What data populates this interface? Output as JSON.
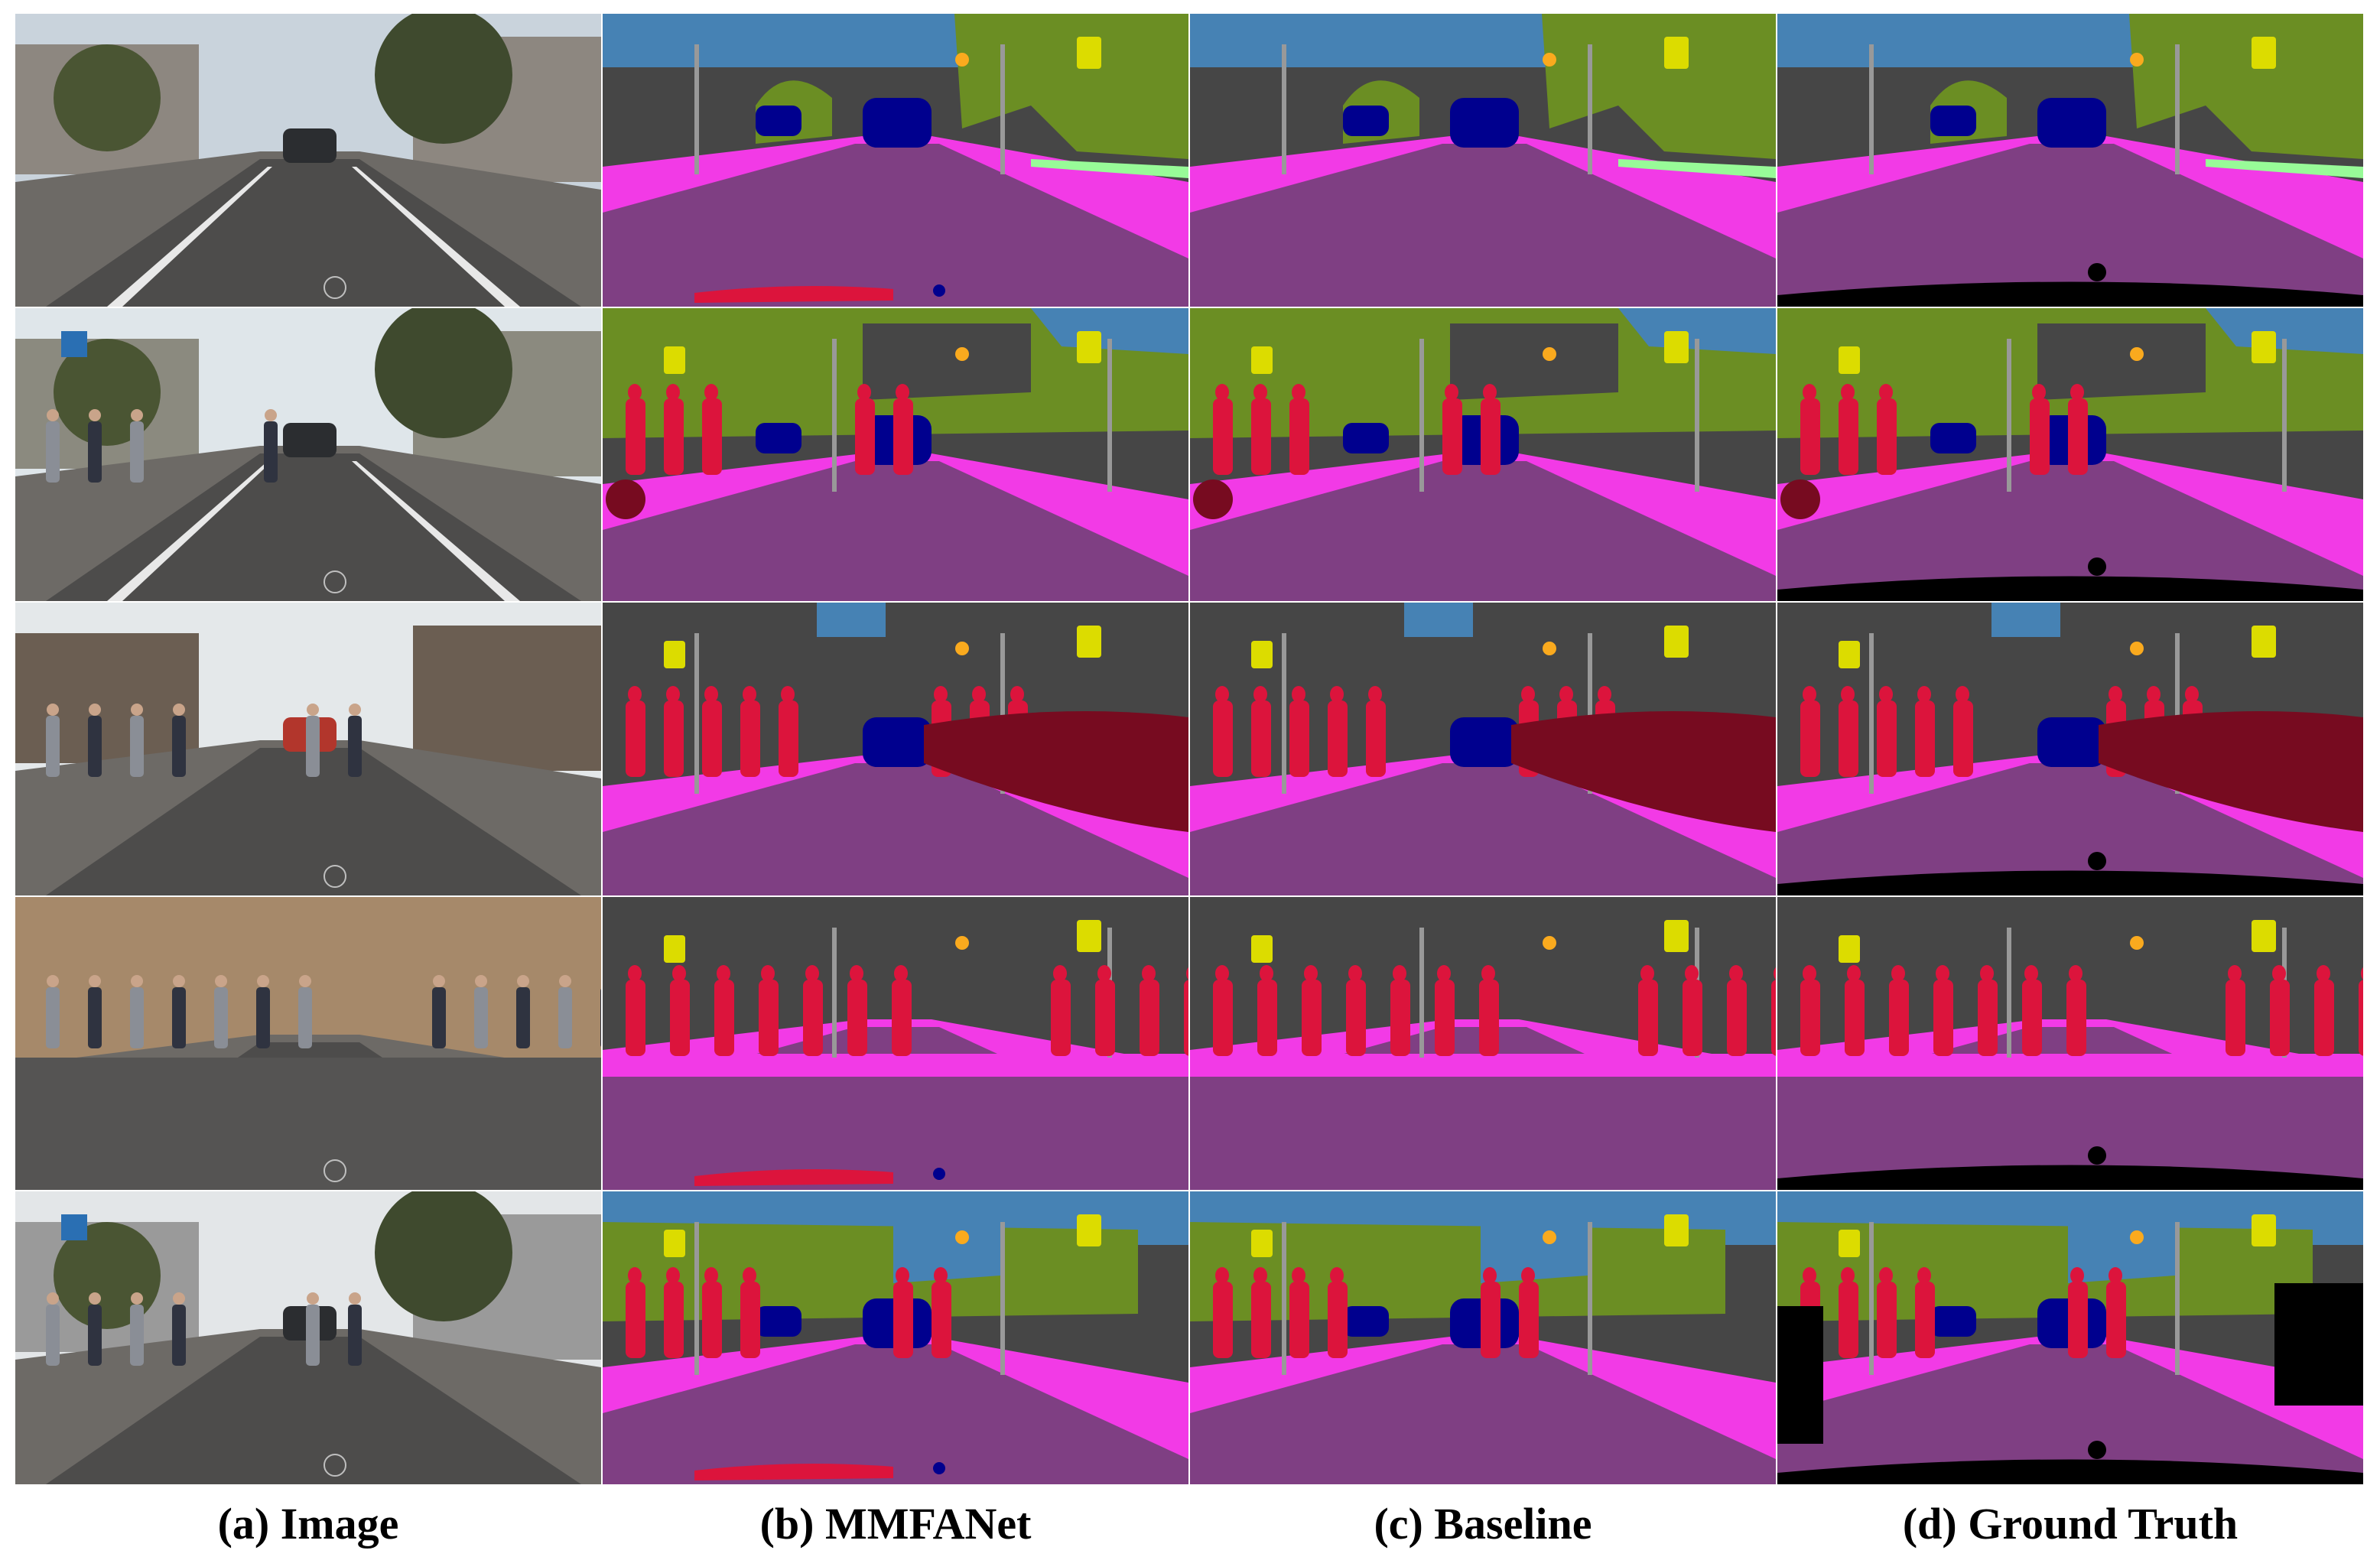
{
  "figure": {
    "captions": [
      "(a) Image",
      "(b) MMFANet",
      "(c) Baseline",
      "(d) Ground Truth"
    ],
    "rows": 5,
    "columns": [
      "image",
      "mmfanet",
      "baseline",
      "ground-truth"
    ]
  },
  "palette": {
    "road": "#7f3f83",
    "sidewalk": "#f23ae6",
    "building": "#464646",
    "sky": "#4682b4",
    "vegetation": "#6b8e23",
    "car": "#00008e",
    "person": "#dc143c",
    "rider": "#ff0000",
    "bicycle": "#770b20",
    "traffic-sign": "#dcdc00",
    "traffic-light": "#faaa1e",
    "pole": "#999999",
    "terrain": "#98fb98",
    "wall": "#bd9999",
    "unlabeled": "#000000"
  }
}
